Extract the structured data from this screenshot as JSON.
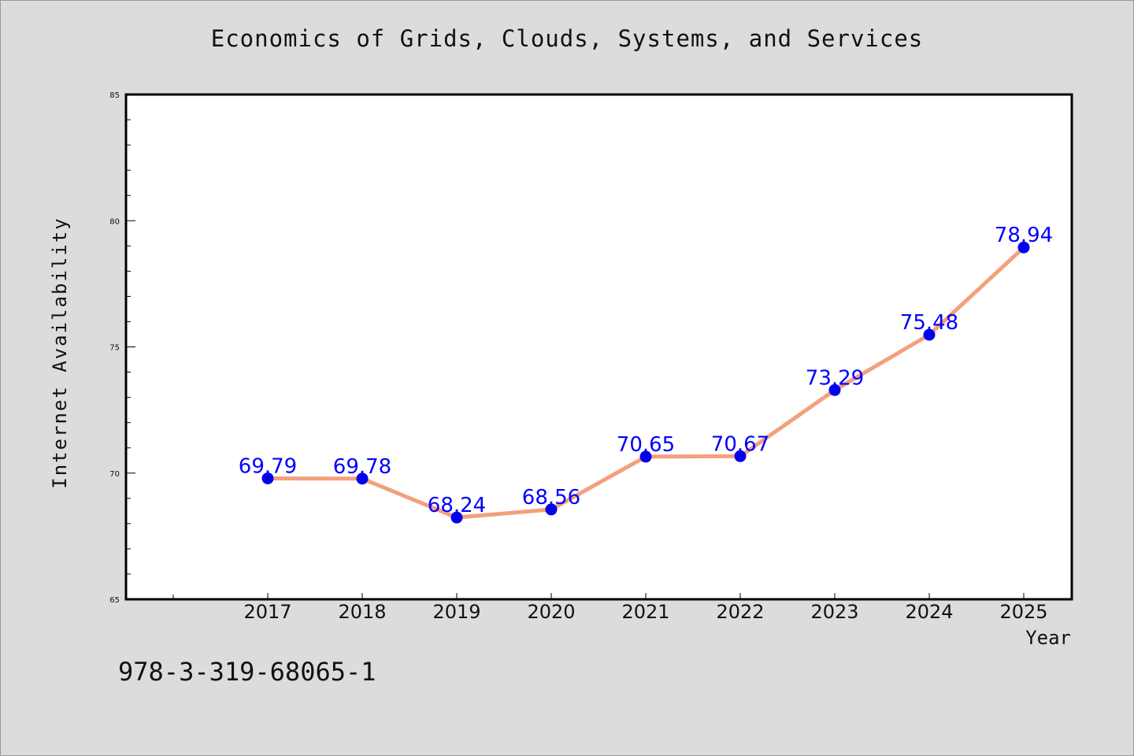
{
  "chart_data": {
    "type": "line",
    "title": "Economics of Grids, Clouds, Systems, and Services",
    "xlabel": "Year",
    "ylabel": "Internet Availability",
    "categories": [
      "2017",
      "2018",
      "2019",
      "2020",
      "2021",
      "2022",
      "2023",
      "2024",
      "2025"
    ],
    "series": [
      {
        "values": [
          69.79,
          69.78,
          68.24,
          68.56,
          70.65,
          70.67,
          73.29,
          75.48,
          78.94
        ],
        "labels": [
          "69.79",
          "69.78",
          "68.24",
          "68.56",
          "70.65",
          "70.67",
          "73.29",
          "75.48",
          "78.94"
        ]
      }
    ],
    "ylim": [
      65,
      85
    ],
    "yticks": [
      "65",
      "70",
      "75",
      "80",
      "85"
    ],
    "grid": false,
    "colors": {
      "line": "#f4a07c",
      "marker": "#0000ee",
      "data_label": "#0000ff",
      "background": "#dcdcdc",
      "plot_background": "#ffffff"
    }
  },
  "footnote": "978-3-319-68065-1"
}
